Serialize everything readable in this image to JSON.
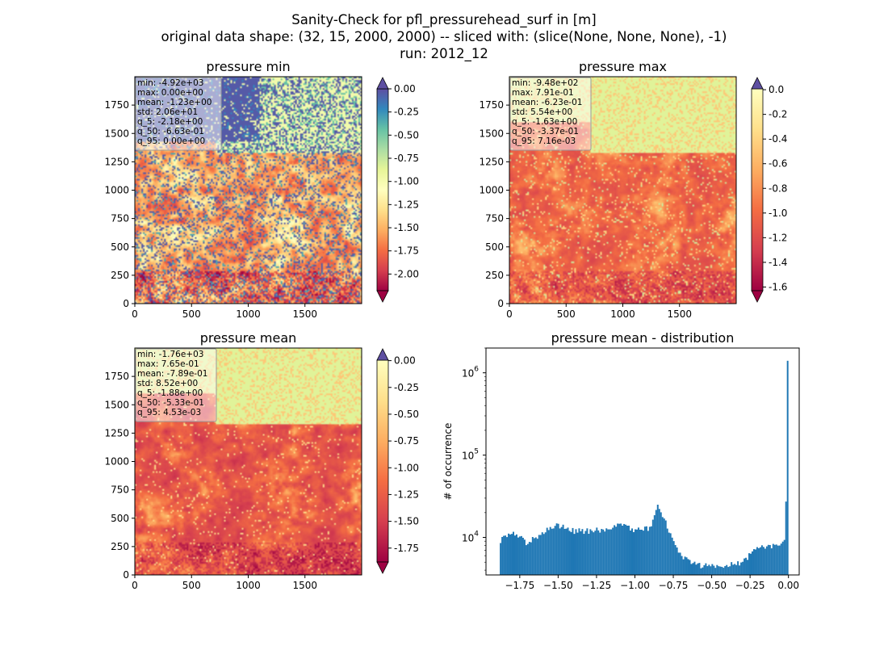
{
  "suptitle": [
    "Sanity-Check for pfl_pressurehead_surf in [m]",
    "original data shape: (32, 15, 2000, 2000) -- sliced with: (slice(None, None, None), -1)",
    "run: 2012_12"
  ],
  "colormap": "Spectral",
  "chart_data": [
    {
      "type": "heatmap",
      "title": "pressure min",
      "xlim": [
        0,
        2000
      ],
      "ylim": [
        0,
        2000
      ],
      "xticks": [
        "0",
        "500",
        "1000",
        "1500"
      ],
      "yticks": [
        "0",
        "250",
        "500",
        "750",
        "1000",
        "1250",
        "1500",
        "1750"
      ],
      "colorbar": {
        "range": [
          -2.18,
          0.0
        ],
        "ticks": [
          "0.00",
          "-0.25",
          "-0.50",
          "-0.75",
          "-1.00",
          "-1.25",
          "-1.50",
          "-1.75",
          "-2.00"
        ],
        "extend": "both"
      },
      "stats": [
        "min: -4.92e+03",
        "max: 0.00e+00",
        "mean: -1.23e+00",
        "std: 2.06e+01",
        "q_5: -2.18e+00",
        "q_50: -6.63e-01",
        "q_95: 0.00e+00"
      ]
    },
    {
      "type": "heatmap",
      "title": "pressure max",
      "xlim": [
        0,
        2000
      ],
      "ylim": [
        0,
        2000
      ],
      "xticks": [
        "0",
        "500",
        "1000",
        "1500"
      ],
      "yticks": [
        "0",
        "250",
        "500",
        "750",
        "1000",
        "1250",
        "1500",
        "1750"
      ],
      "colorbar": {
        "range": [
          -1.63,
          0.0072
        ],
        "ticks": [
          "0.0",
          "-0.2",
          "-0.4",
          "-0.6",
          "-0.8",
          "-1.0",
          "-1.2",
          "-1.4",
          "-1.6"
        ],
        "extend": "both"
      },
      "stats": [
        "min: -9.48e+02",
        "max: 7.91e-01",
        "mean: -6.23e-01",
        "std: 5.54e+00",
        "q_5: -1.63e+00",
        "q_50: -3.37e-01",
        "q_95: 7.16e-03"
      ]
    },
    {
      "type": "heatmap",
      "title": "pressure mean",
      "xlim": [
        0,
        2000
      ],
      "ylim": [
        0,
        2000
      ],
      "xticks": [
        "0",
        "500",
        "1000",
        "1500"
      ],
      "yticks": [
        "0",
        "250",
        "500",
        "750",
        "1000",
        "1250",
        "1500",
        "1750"
      ],
      "colorbar": {
        "range": [
          -1.88,
          0.0045
        ],
        "ticks": [
          "0.00",
          "-0.25",
          "-0.50",
          "-0.75",
          "-1.00",
          "-1.25",
          "-1.50",
          "-1.75"
        ],
        "extend": "both"
      },
      "stats": [
        "min: -1.76e+03",
        "max: 7.65e-01",
        "mean: -7.89e-01",
        "std: 8.52e+00",
        "q_5: -1.88e+00",
        "q_50: -5.33e-01",
        "q_95: 4.53e-03"
      ]
    },
    {
      "type": "bar",
      "title": "pressure mean - distribution",
      "xlabel": "",
      "ylabel": "# of occurrence",
      "yscale": "log",
      "xlim": [
        -1.97,
        0.07
      ],
      "ylim": [
        3500,
        2000000
      ],
      "xticks": [
        "−1.75",
        "−1.50",
        "−1.25",
        "−1.00",
        "−0.75",
        "−0.50",
        "−0.25",
        "0.00"
      ],
      "xtick_values": [
        -1.75,
        -1.5,
        -1.25,
        -1.0,
        -0.75,
        -0.5,
        -0.25,
        0.0
      ],
      "ytick_values": [
        10000,
        100000,
        1000000
      ],
      "color": "#1f77b4",
      "x": [
        -1.88,
        -1.8,
        -1.7,
        -1.6,
        -1.5,
        -1.4,
        -1.3,
        -1.2,
        -1.1,
        -1.0,
        -0.9,
        -0.85,
        -0.8,
        -0.75,
        -0.7,
        -0.6,
        -0.55,
        -0.5,
        -0.4,
        -0.3,
        -0.2,
        -0.1,
        -0.02,
        0.0
      ],
      "y": [
        9000,
        12000,
        8500,
        11500,
        14000,
        12000,
        12000,
        12500,
        14500,
        12000,
        13000,
        24000,
        15500,
        9000,
        6000,
        4600,
        4500,
        4500,
        4500,
        5000,
        7500,
        8000,
        9000,
        1400000
      ]
    }
  ]
}
